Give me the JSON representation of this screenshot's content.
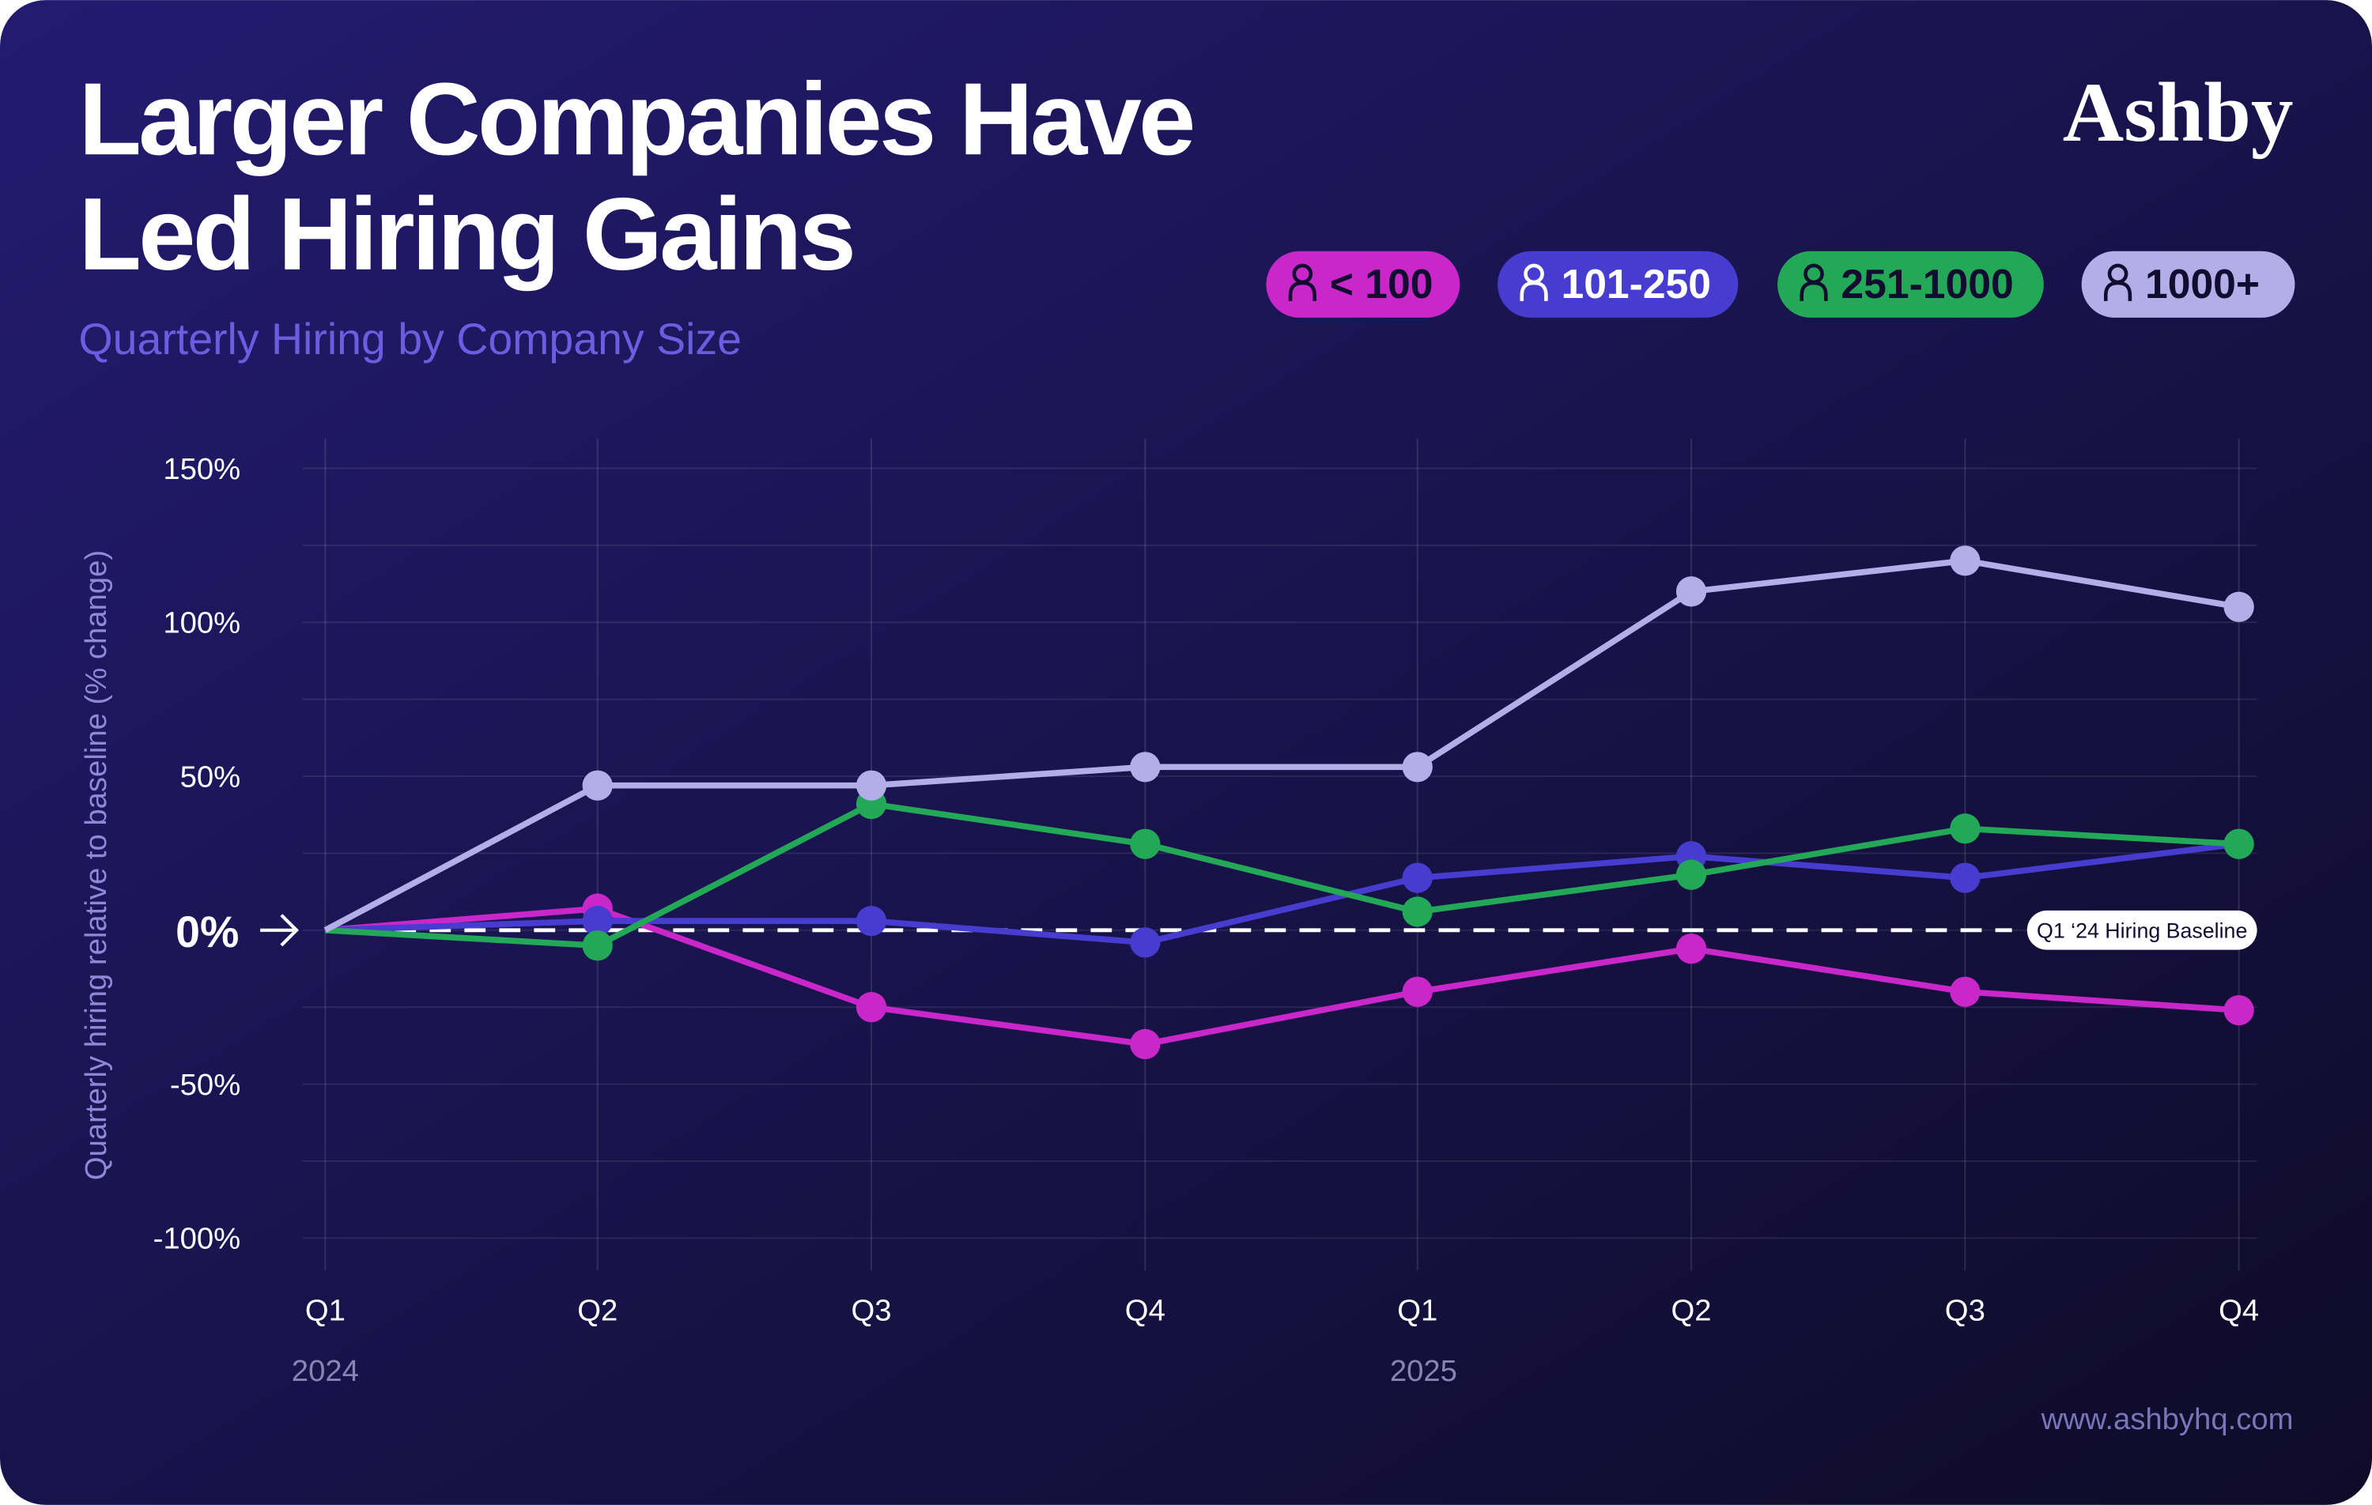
{
  "header": {
    "title_line1": "Larger Companies Have",
    "title_line2": "Led Hiring Gains",
    "subtitle": "Quarterly Hiring by Company Size",
    "logo": "Ashby"
  },
  "footer": {
    "url": "www.ashbyhq.com"
  },
  "colors": {
    "bg_top": "#221a6e",
    "bg_bottom": "#100c2a",
    "accent_subtitle": "#6a5de0"
  },
  "chart_data": {
    "type": "line",
    "title": "Larger Companies Have Led Hiring Gains",
    "subtitle": "Quarterly Hiring by Company Size",
    "xlabel": "",
    "ylabel": "Quarterly hiring relative to baseline (% change)",
    "x": [
      "Q1",
      "Q2",
      "Q3",
      "Q4",
      "Q1",
      "Q2",
      "Q3",
      "Q4"
    ],
    "year_labels": [
      {
        "index": 0,
        "label": "2024"
      },
      {
        "index": 4,
        "label": "2025"
      }
    ],
    "ylim": [
      -100,
      150
    ],
    "yticks": [
      150,
      100,
      50,
      0,
      -50,
      -100
    ],
    "ytick_labels": [
      "150%",
      "100%",
      "50%",
      "0%",
      "-50%",
      "-100%"
    ],
    "grid": true,
    "legend_position": "top-right",
    "baseline": {
      "value": 0,
      "label": "Q1 ‘24 Hiring Baseline"
    },
    "series": [
      {
        "name": "< 100",
        "color": "#c927c9",
        "text_color": "#120d30",
        "values": [
          0,
          7,
          -25,
          -37,
          -20,
          -6,
          -20,
          -26
        ]
      },
      {
        "name": "101-250",
        "color": "#463ccf",
        "text_color": "#ffffff",
        "values": [
          0,
          3,
          3,
          -4,
          17,
          24,
          17,
          28
        ]
      },
      {
        "name": "251-1000",
        "color": "#23a857",
        "text_color": "#120d30",
        "values": [
          0,
          -5,
          41,
          28,
          6,
          18,
          33,
          28
        ]
      },
      {
        "name": "1000+",
        "color": "#b3aee8",
        "text_color": "#120d30",
        "values": [
          0,
          47,
          47,
          53,
          53,
          110,
          120,
          105
        ]
      }
    ]
  }
}
